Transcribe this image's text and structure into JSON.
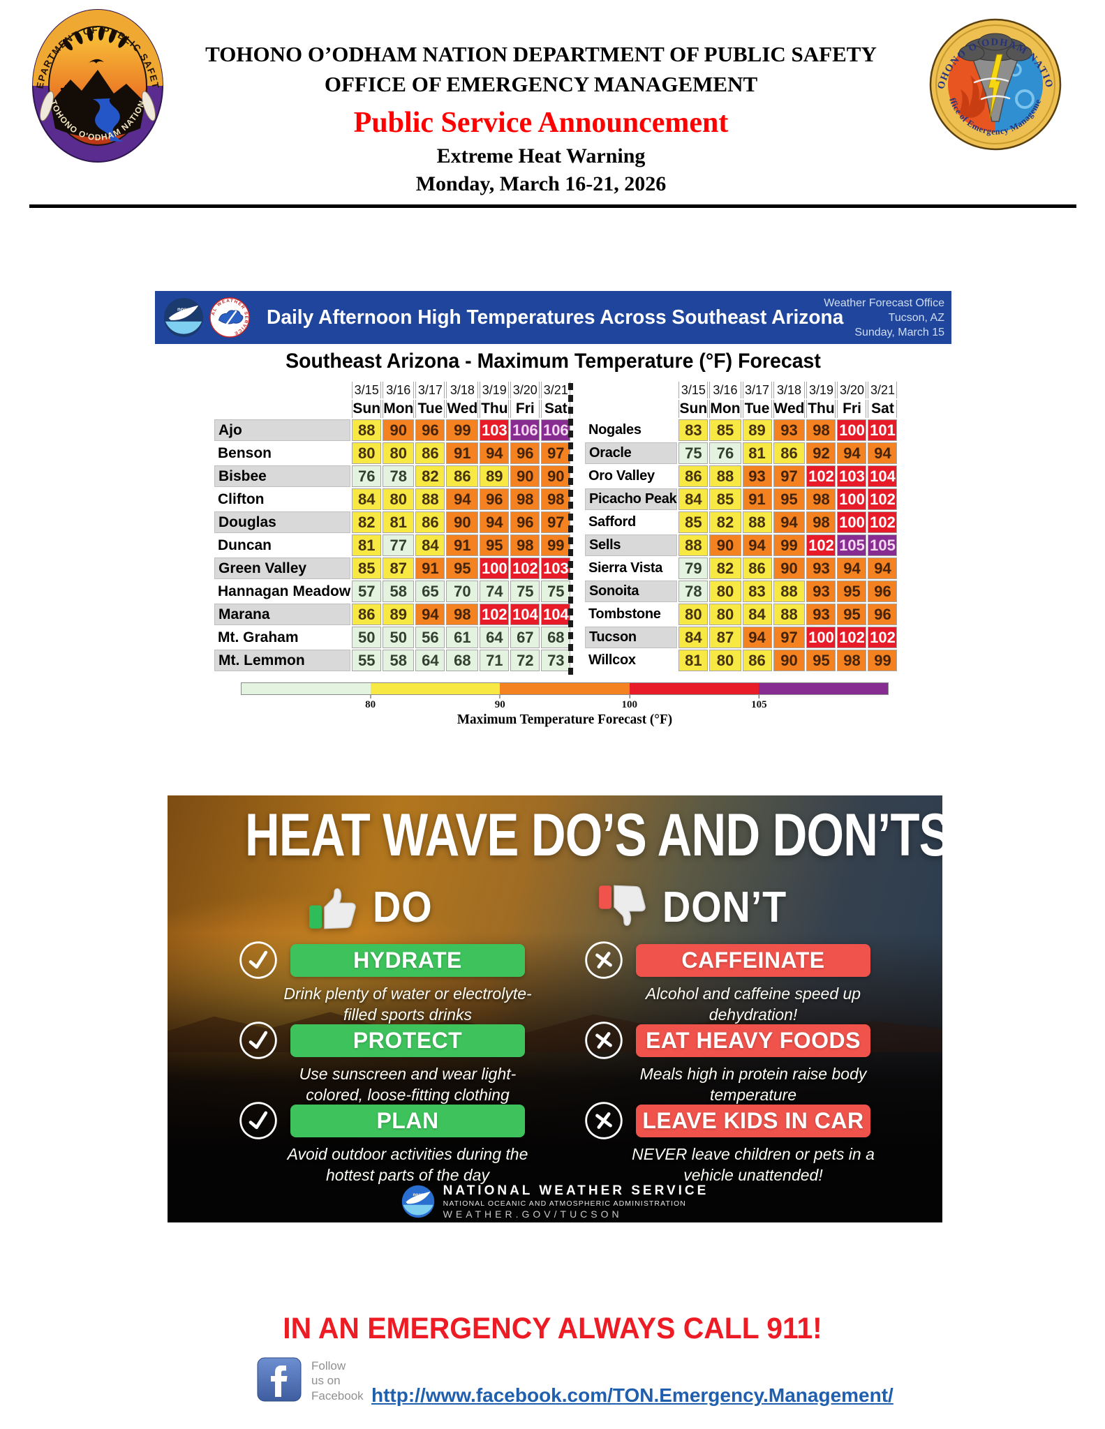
{
  "colors": {
    "psa_red": "#fe0000",
    "emergency_red": "#ed1b24",
    "link_blue": "#1f5fae",
    "banner_blue": "#20459c",
    "heat_green": "#e4f3e0",
    "heat_yellow": "#f7e843",
    "heat_orange": "#f58220",
    "heat_red": "#e81b29",
    "heat_purple": "#872c90",
    "do_green": "#3ec35c",
    "dont_red": "#f0534c"
  },
  "header": {
    "org_line1": "TOHONO O’ODHAM NATION DEPARTMENT OF PUBLIC SAFETY",
    "org_line2": "OFFICE OF EMERGENCY MANAGEMENT",
    "psa_title": "Public Service Announcement",
    "warning_title": "Extreme Heat Warning",
    "date_range": "Monday, March 16-21, 2026"
  },
  "logos": {
    "noaa_label": "noaa",
    "nws_ring_text": "NATIONAL WEATHER SERVICE",
    "dps_seal": {
      "top_text": "DEPARTMENT OF PUBLIC SAFETY",
      "bottom_text": "TOHONO O'ODHAM NATION"
    },
    "oem_seal": {
      "top_text": "TOHONO O'ODHAM NATION",
      "bottom_text": "Office of Emergency Management"
    }
  },
  "forecast": {
    "banner": {
      "title": "Daily Afternoon High Temperatures Across Southeast Arizona",
      "office_line1": "Weather Forecast Office",
      "office_line2": "Tucson, AZ",
      "office_line3": "Sunday, March 15"
    },
    "table_title": "Southeast Arizona - Maximum Temperature (°F) Forecast",
    "dates": [
      "3/15",
      "3/16",
      "3/17",
      "3/18",
      "3/19",
      "3/20",
      "3/21"
    ],
    "days": [
      "Sun",
      "Mon",
      "Tue",
      "Wed",
      "Thu",
      "Fri",
      "Sat"
    ],
    "left_rows": [
      {
        "name": "Ajo",
        "values": [
          88,
          90,
          96,
          99,
          103,
          106,
          106
        ]
      },
      {
        "name": "Benson",
        "values": [
          80,
          80,
          86,
          91,
          94,
          96,
          97
        ]
      },
      {
        "name": "Bisbee",
        "values": [
          76,
          78,
          82,
          86,
          89,
          90,
          90
        ]
      },
      {
        "name": "Clifton",
        "values": [
          84,
          80,
          88,
          94,
          96,
          98,
          98
        ]
      },
      {
        "name": "Douglas",
        "values": [
          82,
          81,
          86,
          90,
          94,
          96,
          97
        ]
      },
      {
        "name": "Duncan",
        "values": [
          81,
          77,
          84,
          91,
          95,
          98,
          99
        ]
      },
      {
        "name": "Green Valley",
        "values": [
          85,
          87,
          91,
          95,
          100,
          102,
          103
        ]
      },
      {
        "name": "Hannagan Meadow",
        "values": [
          57,
          58,
          65,
          70,
          74,
          75,
          75
        ]
      },
      {
        "name": "Marana",
        "values": [
          86,
          89,
          94,
          98,
          102,
          104,
          104
        ]
      },
      {
        "name": "Mt. Graham",
        "values": [
          50,
          50,
          56,
          61,
          64,
          67,
          68
        ]
      },
      {
        "name": "Mt. Lemmon",
        "values": [
          55,
          58,
          64,
          68,
          71,
          72,
          73
        ]
      }
    ],
    "right_rows": [
      {
        "name": "Nogales",
        "values": [
          83,
          85,
          89,
          93,
          98,
          100,
          101
        ]
      },
      {
        "name": "Oracle",
        "values": [
          75,
          76,
          81,
          86,
          92,
          94,
          94
        ]
      },
      {
        "name": "Oro Valley",
        "values": [
          86,
          88,
          93,
          97,
          102,
          103,
          104
        ]
      },
      {
        "name": "Picacho Peak",
        "values": [
          84,
          85,
          91,
          95,
          98,
          100,
          102
        ]
      },
      {
        "name": "Safford",
        "values": [
          85,
          82,
          88,
          94,
          98,
          100,
          102
        ]
      },
      {
        "name": "Sells",
        "values": [
          88,
          90,
          94,
          99,
          102,
          105,
          105
        ]
      },
      {
        "name": "Sierra Vista",
        "values": [
          79,
          82,
          86,
          90,
          93,
          94,
          94
        ]
      },
      {
        "name": "Sonoita",
        "values": [
          78,
          80,
          83,
          88,
          93,
          95,
          96
        ]
      },
      {
        "name": "Tombstone",
        "values": [
          80,
          80,
          84,
          88,
          93,
          95,
          96
        ]
      },
      {
        "name": "Tucson",
        "values": [
          84,
          87,
          94,
          97,
          100,
          102,
          102
        ]
      },
      {
        "name": "Willcox",
        "values": [
          81,
          80,
          86,
          90,
          95,
          98,
          99
        ]
      }
    ],
    "legend": {
      "segments": [
        "#e4f3e0",
        "#f7e843",
        "#f58220",
        "#e81b29",
        "#872c90"
      ],
      "ticks": [
        "80",
        "90",
        "100",
        "105"
      ],
      "label": "Maximum Temperature Forecast (°F)"
    }
  },
  "infographic": {
    "title": "HEAT WAVE DO’S AND DON’TS",
    "do_label": "DO",
    "dont_label": "DON’T",
    "do_items": [
      {
        "title": "HYDRATE",
        "desc": "Drink plenty of water or electrolyte-filled sports drinks"
      },
      {
        "title": "PROTECT",
        "desc": "Use sunscreen and wear light-colored, loose-fitting clothing"
      },
      {
        "title": "PLAN",
        "desc": "Avoid outdoor activities during the hottest parts of the day"
      }
    ],
    "dont_items": [
      {
        "title": "CAFFEINATE",
        "desc": "Alcohol and caffeine speed up dehydration!"
      },
      {
        "title": "EAT HEAVY FOODS",
        "desc": "Meals high in protein raise body temperature"
      },
      {
        "title": "LEAVE KIDS IN CAR",
        "desc": "NEVER leave children or pets in a vehicle unattended!"
      }
    ],
    "footer": {
      "line1": "NATIONAL WEATHER SERVICE",
      "line2": "NATIONAL OCEANIC AND ATMOSPHERIC ADMINISTRATION",
      "line3": "WEATHER.GOV/TUCSON"
    }
  },
  "page_footer": {
    "emergency": "IN AN EMERGENCY ALWAYS CALL 911!",
    "facebook_caption_line1": "Follow",
    "facebook_caption_line2": "us on",
    "facebook_caption_line3": "Facebook",
    "facebook_url": "http://www.facebook.com/TON.Emergency.Management/"
  }
}
